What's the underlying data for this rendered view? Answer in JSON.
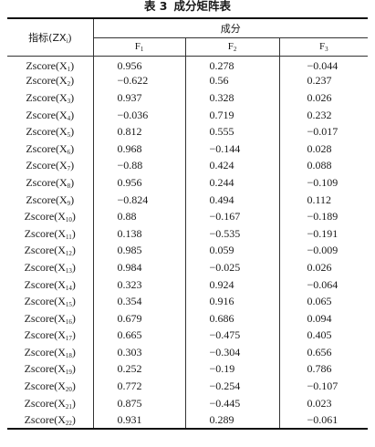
{
  "title": {
    "label": "表 3",
    "text": "成分矩阵表"
  },
  "header": {
    "indicator": "指标(ZX",
    "indicator_sub": "i",
    "indicator_close": ")",
    "group": "成分",
    "factors": [
      {
        "base": "F",
        "sub": "1"
      },
      {
        "base": "F",
        "sub": "2"
      },
      {
        "base": "F",
        "sub": "3"
      }
    ]
  },
  "rows": [
    {
      "label": "Zscore(X",
      "sub": "1",
      "close": ")",
      "f1": "0.956",
      "f2": "0.278",
      "f3": "−0.044"
    },
    {
      "label": "Zscore(X",
      "sub": "2",
      "close": ")",
      "f1": "−0.622",
      "f2": "0.56",
      "f3": "0.237"
    },
    {
      "label": "Zscore(X",
      "sub": "3",
      "close": ")",
      "f1": "0.937",
      "f2": "0.328",
      "f3": "0.026"
    },
    {
      "label": "Zscore(X",
      "sub": "4",
      "close": ")",
      "f1": "−0.036",
      "f2": "0.719",
      "f3": "0.232"
    },
    {
      "label": "Zscore(X",
      "sub": "5",
      "close": ")",
      "f1": "0.812",
      "f2": "0.555",
      "f3": "−0.017"
    },
    {
      "label": "Zscore(X",
      "sub": "6",
      "close": ")",
      "f1": "0.968",
      "f2": "−0.144",
      "f3": "0.028"
    },
    {
      "label": "Zscore(X",
      "sub": "7",
      "close": ")",
      "f1": "−0.88",
      "f2": "0.424",
      "f3": "0.088"
    },
    {
      "label": "Zscore(X",
      "sub": "8",
      "close": ")",
      "f1": "0.956",
      "f2": "0.244",
      "f3": "−0.109"
    },
    {
      "label": "Zscore(X",
      "sub": "9",
      "close": ")",
      "f1": "−0.824",
      "f2": "0.494",
      "f3": "0.112"
    },
    {
      "label": "Zscore(X",
      "sub": "10",
      "close": ")",
      "f1": "0.88",
      "f2": "−0.167",
      "f3": "−0.189"
    },
    {
      "label": "Zscore(X",
      "sub": "11",
      "close": ")",
      "f1": "0.138",
      "f2": "−0.535",
      "f3": "−0.191"
    },
    {
      "label": "Zscore(X",
      "sub": "12",
      "close": ")",
      "f1": "0.985",
      "f2": "0.059",
      "f3": "−0.009"
    },
    {
      "label": "Zscore(X",
      "sub": "13",
      "close": ")",
      "f1": "0.984",
      "f2": "−0.025",
      "f3": "0.026"
    },
    {
      "label": "Zscore(X",
      "sub": "14",
      "close": ")",
      "f1": "0.323",
      "f2": "0.924",
      "f3": "−0.064"
    },
    {
      "label": "Zscore(X",
      "sub": "15",
      "close": ")",
      "f1": "0.354",
      "f2": "0.916",
      "f3": "0.065"
    },
    {
      "label": "Zscore(X",
      "sub": "16",
      "close": ")",
      "f1": "0.679",
      "f2": "0.686",
      "f3": "0.094"
    },
    {
      "label": "Zscore(X",
      "sub": "17",
      "close": ")",
      "f1": "0.665",
      "f2": "−0.475",
      "f3": "0.405"
    },
    {
      "label": "Zscore(X",
      "sub": "18",
      "close": ")",
      "f1": "0.303",
      "f2": "−0.304",
      "f3": "0.656"
    },
    {
      "label": "Zscore(X",
      "sub": "19",
      "close": ")",
      "f1": "0.252",
      "f2": "−0.19",
      "f3": "0.786"
    },
    {
      "label": "Zscore(X",
      "sub": "20",
      "close": ")",
      "f1": "0.772",
      "f2": "−0.254",
      "f3": "−0.107"
    },
    {
      "label": "Zscore(X",
      "sub": "21",
      "close": ")",
      "f1": "0.875",
      "f2": "−0.445",
      "f3": "0.023"
    },
    {
      "label": "Zscore(X",
      "sub": "22",
      "close": ")",
      "f1": "0.931",
      "f2": "0.289",
      "f3": "−0.061"
    }
  ]
}
